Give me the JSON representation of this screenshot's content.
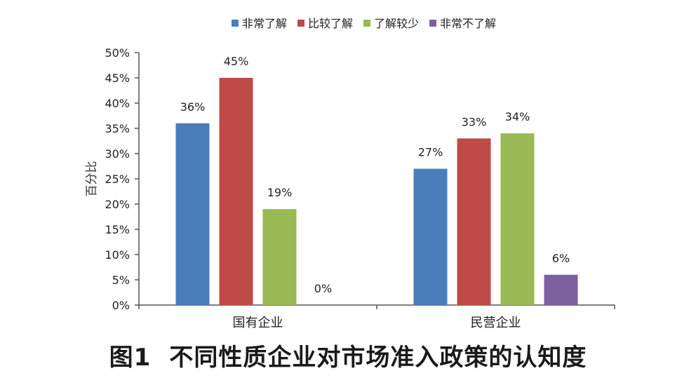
{
  "chart_data": {
    "type": "bar",
    "categories": [
      "国有企业",
      "民营企业"
    ],
    "series": [
      {
        "name": "非常了解",
        "values": [
          36,
          27
        ],
        "color": "#4a7ebb"
      },
      {
        "name": "比较了解",
        "values": [
          45,
          33
        ],
        "color": "#be4b48"
      },
      {
        "name": "了解较少",
        "values": [
          19,
          34
        ],
        "color": "#98b954"
      },
      {
        "name": "非常不了解",
        "values": [
          0,
          6
        ],
        "color": "#7d60a0"
      }
    ],
    "data_labels": [
      [
        "36%",
        "27%"
      ],
      [
        "45%",
        "33%"
      ],
      [
        "19%",
        "34%"
      ],
      [
        "0%",
        "6%"
      ]
    ],
    "ylabel": "百分比",
    "ylim": [
      0,
      50
    ],
    "yticks": [
      "0%",
      "5%",
      "10%",
      "15%",
      "20%",
      "25%",
      "30%",
      "35%",
      "40%",
      "45%",
      "50%"
    ],
    "legend_position": "top",
    "grid": false
  },
  "caption": {
    "number": "图1",
    "text": "不同性质企业对市场准入政策的认知度"
  }
}
